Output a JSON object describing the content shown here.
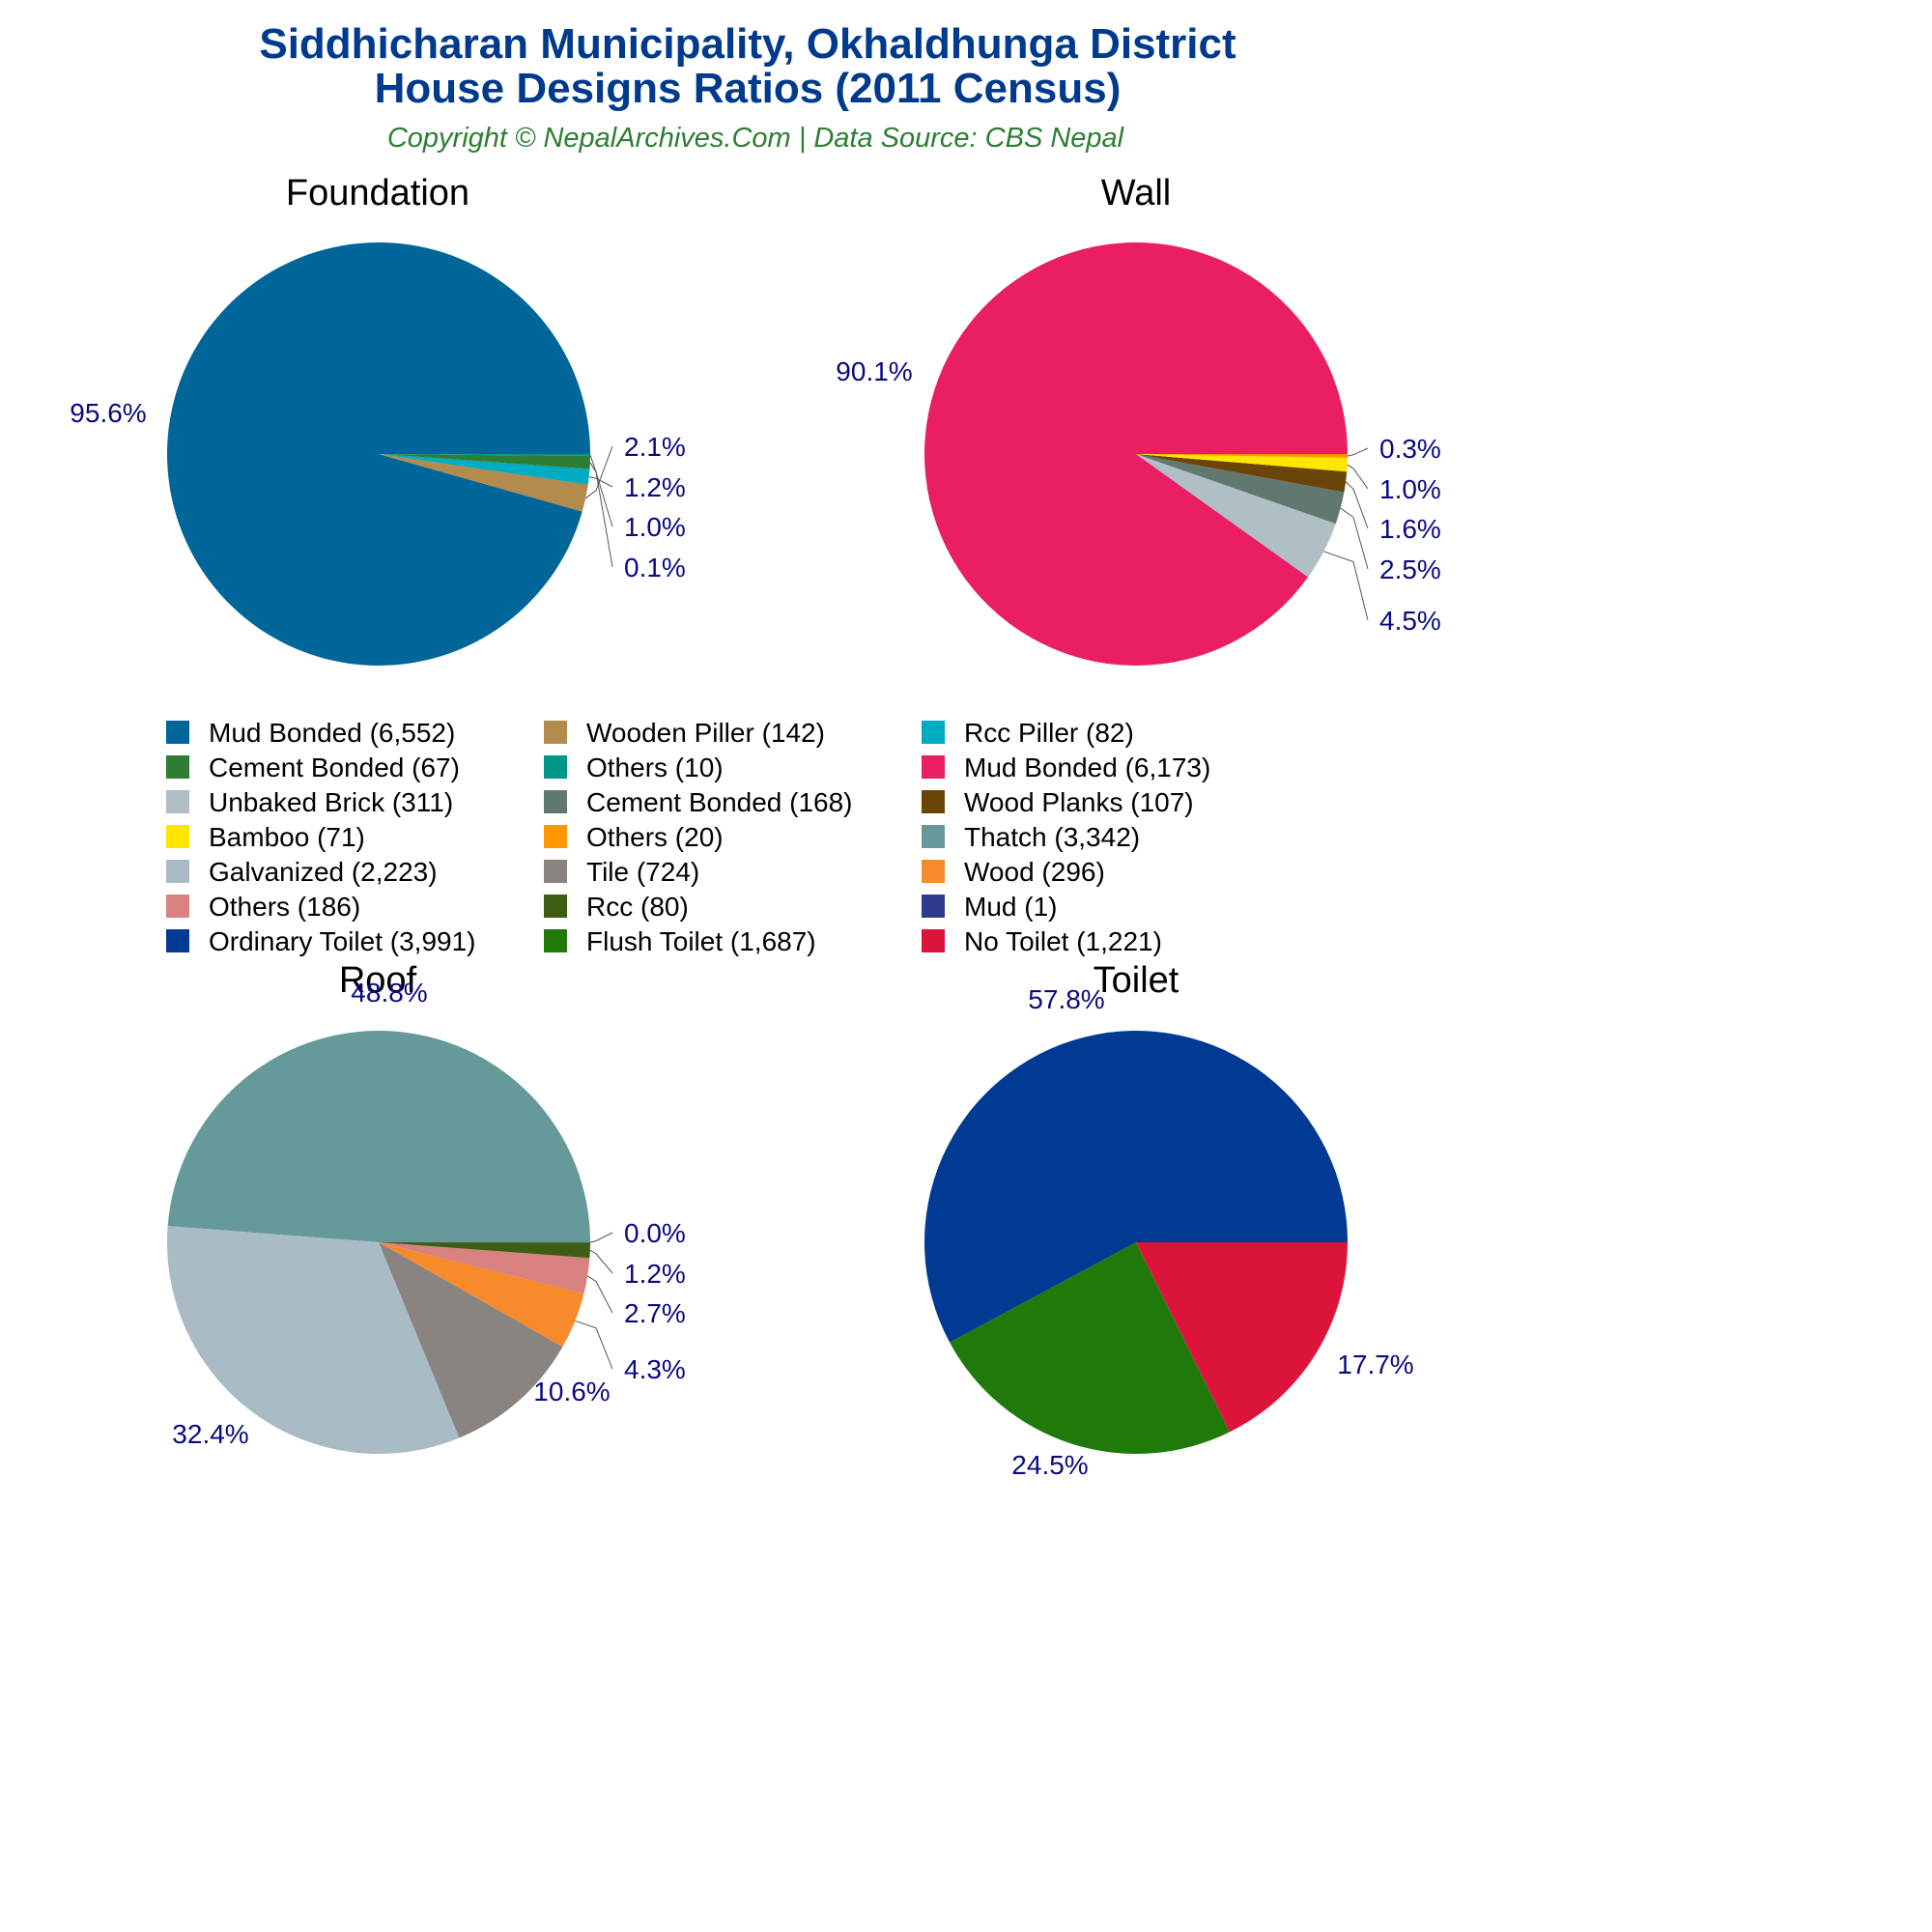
{
  "header": {
    "title_line1": "Siddhicharan Municipality, Okhaldhunga District",
    "title_line2": "House Designs Ratios (2011 Census)",
    "subtitle": "Copyright © NepalArchives.Com | Data Source: CBS Nepal"
  },
  "chart_data": [
    {
      "type": "pie",
      "title": "Foundation",
      "slices": [
        {
          "label": "Mud Bonded (6,552)",
          "value": 6552,
          "pct": "95.6%",
          "color": "#006699"
        },
        {
          "label": "Wooden Piller (142)",
          "value": 142,
          "pct": "2.1%",
          "color": "#b38b4d"
        },
        {
          "label": "Rcc Piller (82)",
          "value": 82,
          "pct": "1.2%",
          "color": "#00acc1"
        },
        {
          "label": "Cement Bonded (67)",
          "value": 67,
          "pct": "1.0%",
          "color": "#2e7d32"
        },
        {
          "label": "Others (10)",
          "value": 10,
          "pct": "0.1%",
          "color": "#00968a"
        }
      ]
    },
    {
      "type": "pie",
      "title": "Wall",
      "slices": [
        {
          "label": "Mud Bonded (6,173)",
          "value": 6173,
          "pct": "90.1%",
          "color": "#e91e63"
        },
        {
          "label": "Unbaked Brick (311)",
          "value": 311,
          "pct": "4.5%",
          "color": "#b0bec5"
        },
        {
          "label": "Cement Bonded (168)",
          "value": 168,
          "pct": "2.5%",
          "color": "#607870"
        },
        {
          "label": "Wood Planks (107)",
          "value": 107,
          "pct": "1.6%",
          "color": "#6b4408"
        },
        {
          "label": "Bamboo (71)",
          "value": 71,
          "pct": "1.0%",
          "color": "#ffe600"
        },
        {
          "label": "Others (20)",
          "value": 20,
          "pct": "0.3%",
          "color": "#ff9800"
        }
      ]
    },
    {
      "type": "pie",
      "title": "Roof",
      "slices": [
        {
          "label": "Thatch (3,342)",
          "value": 3342,
          "pct": "48.8%",
          "color": "#669999"
        },
        {
          "label": "Galvanized (2,223)",
          "value": 2223,
          "pct": "32.4%",
          "color": "#a9bbc4"
        },
        {
          "label": "Tile (724)",
          "value": 724,
          "pct": "10.6%",
          "color": "#8a8480"
        },
        {
          "label": "Wood (296)",
          "value": 296,
          "pct": "4.3%",
          "color": "#f78a2a"
        },
        {
          "label": "Others (186)",
          "value": 186,
          "pct": "2.7%",
          "color": "#d98080"
        },
        {
          "label": "Rcc (80)",
          "value": 80,
          "pct": "1.2%",
          "color": "#3d5e12"
        },
        {
          "label": "Mud (1)",
          "value": 1,
          "pct": "0.0%",
          "color": "#2e3b8a"
        }
      ]
    },
    {
      "type": "pie",
      "title": "Toilet",
      "slices": [
        {
          "label": "Ordinary Toilet (3,991)",
          "value": 3991,
          "pct": "57.8%",
          "color": "#003a93"
        },
        {
          "label": "Flush Toilet (1,687)",
          "value": 1687,
          "pct": "24.5%",
          "color": "#1f7a0a"
        },
        {
          "label": "No Toilet (1,221)",
          "value": 1221,
          "pct": "17.7%",
          "color": "#dc143c"
        }
      ]
    }
  ],
  "legend": [
    {
      "label": "Mud Bonded (6,552)",
      "color": "#006699"
    },
    {
      "label": "Wooden Piller (142)",
      "color": "#b38b4d"
    },
    {
      "label": "Rcc Piller (82)",
      "color": "#00acc1"
    },
    {
      "label": "Cement Bonded (67)",
      "color": "#2e7d32"
    },
    {
      "label": "Others (10)",
      "color": "#00968a"
    },
    {
      "label": "Mud Bonded (6,173)",
      "color": "#e91e63"
    },
    {
      "label": "Unbaked Brick (311)",
      "color": "#b0bec5"
    },
    {
      "label": "Cement Bonded (168)",
      "color": "#607870"
    },
    {
      "label": "Wood Planks (107)",
      "color": "#6b4408"
    },
    {
      "label": "Bamboo (71)",
      "color": "#ffe600"
    },
    {
      "label": "Others (20)",
      "color": "#ff9800"
    },
    {
      "label": "Thatch (3,342)",
      "color": "#669999"
    },
    {
      "label": "Galvanized (2,223)",
      "color": "#a9bbc4"
    },
    {
      "label": "Tile (724)",
      "color": "#8a8480"
    },
    {
      "label": "Wood (296)",
      "color": "#f78a2a"
    },
    {
      "label": "Others (186)",
      "color": "#d98080"
    },
    {
      "label": "Rcc (80)",
      "color": "#3d5e12"
    },
    {
      "label": "Mud (1)",
      "color": "#2e3b8a"
    },
    {
      "label": "Ordinary Toilet (3,991)",
      "color": "#003a93"
    },
    {
      "label": "Flush Toilet (1,687)",
      "color": "#1f7a0a"
    },
    {
      "label": "No Toilet (1,221)",
      "color": "#dc143c"
    }
  ]
}
